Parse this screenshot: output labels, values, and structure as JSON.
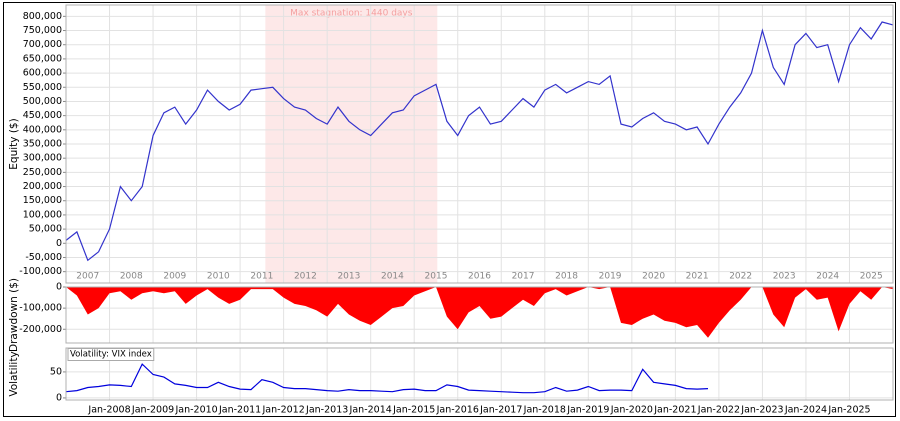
{
  "chart_data": [
    {
      "type": "line",
      "ylabel": "Equity ($)",
      "color": "#3333cc",
      "grid": true,
      "xlim": [
        2007.0,
        2026.0
      ],
      "xticks": [
        {
          "value": 2007.5,
          "label": "2007"
        },
        {
          "value": 2008.5,
          "label": "2008"
        },
        {
          "value": 2009.5,
          "label": "2009"
        },
        {
          "value": 2010.5,
          "label": "2010"
        },
        {
          "value": 2011.5,
          "label": "2011"
        },
        {
          "value": 2012.5,
          "label": "2012"
        },
        {
          "value": 2013.5,
          "label": "2013"
        },
        {
          "value": 2014.5,
          "label": "2014"
        },
        {
          "value": 2015.5,
          "label": "2015"
        },
        {
          "value": 2016.5,
          "label": "2016"
        },
        {
          "value": 2017.5,
          "label": "2017"
        },
        {
          "value": 2018.5,
          "label": "2018"
        },
        {
          "value": 2019.5,
          "label": "2019"
        },
        {
          "value": 2020.5,
          "label": "2020"
        },
        {
          "value": 2021.5,
          "label": "2021"
        },
        {
          "value": 2022.5,
          "label": "2022"
        },
        {
          "value": 2023.5,
          "label": "2023"
        },
        {
          "value": 2024.5,
          "label": "2024"
        },
        {
          "value": 2025.5,
          "label": "2025"
        }
      ],
      "xgrid": [
        2008,
        2009,
        2010,
        2011,
        2012,
        2013,
        2014,
        2015,
        2016,
        2017,
        2018,
        2019,
        2020,
        2021,
        2022,
        2023,
        2024,
        2025
      ],
      "ylim": [
        -140000,
        840000
      ],
      "yticks": [
        {
          "value": -100000,
          "label": "-100,000"
        },
        {
          "value": -50000,
          "label": "-50,000"
        },
        0,
        {
          "value": 50000,
          "label": "50,000"
        },
        {
          "value": 100000,
          "label": "100,000"
        },
        {
          "value": 150000,
          "label": "150,000"
        },
        {
          "value": 200000,
          "label": "200,000"
        },
        {
          "value": 250000,
          "label": "250,000"
        },
        {
          "value": 300000,
          "label": "300,000"
        },
        {
          "value": 350000,
          "label": "350,000"
        },
        {
          "value": 400000,
          "label": "400,000"
        },
        {
          "value": 450000,
          "label": "450,000"
        },
        {
          "value": 500000,
          "label": "500,000"
        },
        {
          "value": 550000,
          "label": "550,000"
        },
        {
          "value": 600000,
          "label": "600,000"
        },
        {
          "value": 650000,
          "label": "650,000"
        },
        {
          "value": 700000,
          "label": "700,000"
        },
        {
          "value": 750000,
          "label": "750,000"
        },
        {
          "value": 800000,
          "label": "800,000"
        }
      ],
      "highlight": {
        "start": 2011.58,
        "end": 2015.53,
        "label": "Max stagnation: 1440 days",
        "color": "#fde8e8"
      },
      "x": [
        2007.0,
        2007.25,
        2007.5,
        2007.75,
        2008.0,
        2008.25,
        2008.5,
        2008.75,
        2009.0,
        2009.25,
        2009.5,
        2009.75,
        2010.0,
        2010.25,
        2010.5,
        2010.75,
        2011.0,
        2011.25,
        2011.5,
        2011.75,
        2012.0,
        2012.25,
        2012.5,
        2012.75,
        2013.0,
        2013.25,
        2013.5,
        2013.75,
        2014.0,
        2014.25,
        2014.5,
        2014.75,
        2015.0,
        2015.25,
        2015.5,
        2015.75,
        2016.0,
        2016.25,
        2016.5,
        2016.75,
        2017.0,
        2017.25,
        2017.5,
        2017.75,
        2018.0,
        2018.25,
        2018.5,
        2018.75,
        2019.0,
        2019.25,
        2019.5,
        2019.75,
        2020.0,
        2020.25,
        2020.5,
        2020.75,
        2021.0,
        2021.25,
        2021.5,
        2021.75,
        2022.0,
        2022.25,
        2022.5,
        2022.75,
        2023.0,
        2023.25,
        2023.5,
        2023.75,
        2024.0,
        2024.25,
        2024.5,
        2024.75,
        2025.0,
        2025.25,
        2025.5,
        2025.75,
        2026.0
      ],
      "values": [
        10000,
        40000,
        -60000,
        -30000,
        50000,
        200000,
        150000,
        200000,
        380000,
        460000,
        480000,
        420000,
        470000,
        540000,
        500000,
        470000,
        490000,
        540000,
        545000,
        550000,
        510000,
        480000,
        470000,
        440000,
        420000,
        480000,
        430000,
        400000,
        380000,
        420000,
        460000,
        470000,
        520000,
        540000,
        560000,
        430000,
        380000,
        450000,
        480000,
        420000,
        430000,
        470000,
        510000,
        480000,
        540000,
        560000,
        530000,
        550000,
        570000,
        560000,
        590000,
        420000,
        410000,
        440000,
        460000,
        430000,
        420000,
        400000,
        410000,
        350000,
        420000,
        480000,
        530000,
        600000,
        750000,
        620000,
        560000,
        700000,
        740000,
        690000,
        700000,
        570000,
        700000,
        760000,
        720000,
        780000,
        770000
      ]
    },
    {
      "type": "area",
      "ylabel": "Drawdown ($)",
      "color": "#ff0000",
      "grid": true,
      "xlim": [
        2007.0,
        2026.0
      ],
      "xgrid": [
        2008,
        2009,
        2010,
        2011,
        2012,
        2013,
        2014,
        2015,
        2016,
        2017,
        2018,
        2019,
        2020,
        2021,
        2022,
        2023,
        2024,
        2025
      ],
      "ylim": [
        -265000,
        0
      ],
      "yticks": [
        {
          "value": -200000,
          "label": "-200,000"
        },
        {
          "value": -100000,
          "label": "-100,000"
        },
        0
      ],
      "x": [
        2007.0,
        2007.25,
        2007.5,
        2007.75,
        2008.0,
        2008.25,
        2008.5,
        2008.75,
        2009.0,
        2009.25,
        2009.5,
        2009.75,
        2010.0,
        2010.25,
        2010.5,
        2010.75,
        2011.0,
        2011.25,
        2011.5,
        2011.75,
        2012.0,
        2012.25,
        2012.5,
        2012.75,
        2013.0,
        2013.25,
        2013.5,
        2013.75,
        2014.0,
        2014.25,
        2014.5,
        2014.75,
        2015.0,
        2015.25,
        2015.5,
        2015.75,
        2016.0,
        2016.25,
        2016.5,
        2016.75,
        2017.0,
        2017.25,
        2017.5,
        2017.75,
        2018.0,
        2018.25,
        2018.5,
        2018.75,
        2019.0,
        2019.25,
        2019.5,
        2019.75,
        2020.0,
        2020.25,
        2020.5,
        2020.75,
        2021.0,
        2021.25,
        2021.5,
        2021.75,
        2022.0,
        2022.25,
        2022.5,
        2022.75,
        2023.0,
        2023.25,
        2023.5,
        2023.75,
        2024.0,
        2024.25,
        2024.5,
        2024.75,
        2025.0,
        2025.25,
        2025.5,
        2025.75,
        2026.0
      ],
      "values": [
        0,
        -40000,
        -130000,
        -100000,
        -30000,
        -20000,
        -60000,
        -30000,
        -20000,
        -30000,
        -20000,
        -80000,
        -40000,
        -10000,
        -50000,
        -80000,
        -60000,
        -10000,
        -10000,
        -10000,
        -50000,
        -80000,
        -90000,
        -110000,
        -140000,
        -80000,
        -130000,
        -160000,
        -180000,
        -140000,
        -100000,
        -90000,
        -40000,
        -20000,
        0,
        -140000,
        -200000,
        -120000,
        -90000,
        -150000,
        -140000,
        -100000,
        -60000,
        -90000,
        -30000,
        -10000,
        -40000,
        -20000,
        0,
        -10000,
        0,
        -170000,
        -180000,
        -150000,
        -130000,
        -160000,
        -170000,
        -190000,
        -180000,
        -240000,
        -170000,
        -110000,
        -60000,
        0,
        0,
        -130000,
        -190000,
        -50000,
        -10000,
        -60000,
        -50000,
        -210000,
        -80000,
        -20000,
        -60000,
        0,
        -10000
      ]
    },
    {
      "type": "line",
      "ylabel": "Volatility",
      "annotation": "Volatility: VIX index",
      "color": "#0000dd",
      "grid": true,
      "xlim": [
        2007.0,
        2026.0
      ],
      "xticks": [
        {
          "value": 2008,
          "label": "Jan-2008"
        },
        {
          "value": 2009,
          "label": "Jan-2009"
        },
        {
          "value": 2010,
          "label": "Jan-2010"
        },
        {
          "value": 2011,
          "label": "Jan-2011"
        },
        {
          "value": 2012,
          "label": "Jan-2012"
        },
        {
          "value": 2013,
          "label": "Jan-2013"
        },
        {
          "value": 2014,
          "label": "Jan-2014"
        },
        {
          "value": 2015,
          "label": "Jan-2015"
        },
        {
          "value": 2016,
          "label": "Jan-2016"
        },
        {
          "value": 2017,
          "label": "Jan-2017"
        },
        {
          "value": 2018,
          "label": "Jan-2018"
        },
        {
          "value": 2019,
          "label": "Jan-2019"
        },
        {
          "value": 2020,
          "label": "Jan-2020"
        },
        {
          "value": 2021,
          "label": "Jan-2021"
        },
        {
          "value": 2022,
          "label": "Jan-2022"
        },
        {
          "value": 2023,
          "label": "Jan-2023"
        },
        {
          "value": 2024,
          "label": "Jan-2024"
        },
        {
          "value": 2025,
          "label": "Jan-2025"
        }
      ],
      "ylim": [
        -4,
        96
      ],
      "yticks": [
        0,
        50
      ],
      "x": [
        2007.0,
        2007.25,
        2007.5,
        2007.75,
        2008.0,
        2008.25,
        2008.5,
        2008.75,
        2009.0,
        2009.25,
        2009.5,
        2009.75,
        2010.0,
        2010.25,
        2010.5,
        2010.75,
        2011.0,
        2011.25,
        2011.5,
        2011.75,
        2012.0,
        2012.25,
        2012.5,
        2012.75,
        2013.0,
        2013.25,
        2013.5,
        2013.75,
        2014.0,
        2014.25,
        2014.5,
        2014.75,
        2015.0,
        2015.25,
        2015.5,
        2015.75,
        2016.0,
        2016.25,
        2016.5,
        2016.75,
        2017.0,
        2017.25,
        2017.5,
        2017.75,
        2018.0,
        2018.25,
        2018.5,
        2018.75,
        2019.0,
        2019.25,
        2019.5,
        2019.75,
        2020.0,
        2020.25,
        2020.5,
        2020.75,
        2021.0,
        2021.25,
        2021.5,
        2021.75,
        2022.0,
        2022.25,
        2022.5,
        2022.75,
        2023.0,
        2023.25,
        2023.5,
        2023.75,
        2024.0,
        2024.25,
        2024.5,
        2024.75,
        2025.0,
        2025.25,
        2025.5,
        2025.75,
        2026.0
      ],
      "values": [
        12,
        14,
        20,
        22,
        25,
        24,
        22,
        65,
        45,
        40,
        27,
        24,
        20,
        20,
        30,
        22,
        17,
        16,
        35,
        30,
        20,
        18,
        18,
        16,
        14,
        13,
        16,
        14,
        14,
        13,
        12,
        16,
        17,
        14,
        14,
        25,
        22,
        15,
        14,
        13,
        12,
        11,
        10,
        10,
        12,
        20,
        13,
        15,
        22,
        14,
        15,
        15,
        14,
        55,
        30,
        27,
        24,
        18,
        17,
        18,
        null,
        null,
        null,
        null,
        null,
        null,
        null,
        null,
        null,
        null,
        null,
        null,
        null,
        null,
        null,
        null,
        null
      ]
    }
  ]
}
